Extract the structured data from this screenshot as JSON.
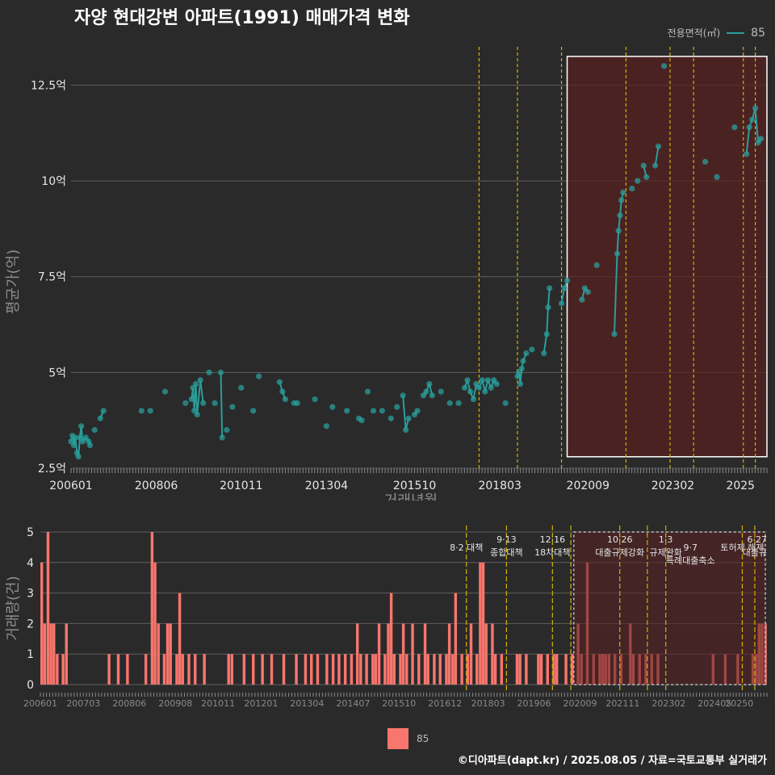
{
  "title": "자양 현대강변 아파트(1991) 매매가격 변화",
  "legend_top": {
    "label": "전용면적(㎡)",
    "value": "85"
  },
  "legend_bottom": {
    "value": "85"
  },
  "caption": "©디아파트(dapt.kr) / 2025.08.05 / 자료=국토교통부 실거래가",
  "colors": {
    "price": "#2a9d9a",
    "volume": "#f8766d",
    "policy_line": "#d4b106",
    "highlight": "#5a1f20"
  },
  "chart_data": [
    {
      "type": "scatter",
      "xlabel": "거래년월",
      "ylabel": "평균가(억)",
      "xlim": [
        2006.0,
        2025.75
      ],
      "ylim": [
        2.5,
        13.5
      ],
      "y_ticks": [
        2.5,
        5,
        7.5,
        10,
        12.5
      ],
      "y_tick_labels": [
        "2.5억",
        "5억",
        "7.5억",
        "10억",
        "12.5억"
      ],
      "x_ticks": [
        2006.0,
        2008.42,
        2010.83,
        2013.25,
        2015.75,
        2018.17,
        2020.67,
        2023.08,
        2025.0
      ],
      "x_tick_labels": [
        "200601",
        "200806",
        "201011",
        "201304",
        "201510",
        "201803",
        "202009",
        "202302",
        "2025"
      ],
      "policy_lines": [
        2017.58,
        2018.67,
        2019.92,
        2021.75,
        2023.0,
        2023.67,
        2025.08,
        2025.42
      ],
      "highlight_range": {
        "x": [
          2020.08,
          2025.75
        ],
        "y": [
          2.8,
          13.25
        ]
      },
      "series": [
        {
          "name": "85",
          "points": [
            [
              2006.0,
              3.2
            ],
            [
              2006.04,
              3.35
            ],
            [
              2006.08,
              3.1
            ],
            [
              2006.12,
              3.3
            ],
            [
              2006.17,
              2.9
            ],
            [
              2006.21,
              2.8
            ],
            [
              2006.25,
              3.3
            ],
            [
              2006.29,
              3.6
            ],
            [
              2006.33,
              3.2
            ],
            [
              2006.42,
              3.3
            ],
            [
              2006.5,
              3.2
            ],
            [
              2006.54,
              3.1
            ],
            [
              2006.67,
              3.5
            ],
            [
              2006.83,
              3.8
            ],
            [
              2006.92,
              4.0
            ],
            [
              2008.0,
              4.0
            ],
            [
              2008.25,
              4.0
            ],
            [
              2008.67,
              4.5
            ],
            [
              2009.25,
              4.2
            ],
            [
              2009.42,
              4.3
            ],
            [
              2009.46,
              4.6
            ],
            [
              2009.5,
              4.0
            ],
            [
              2009.54,
              4.7
            ],
            [
              2009.58,
              3.9
            ],
            [
              2009.67,
              4.8
            ],
            [
              2009.75,
              4.2
            ],
            [
              2009.92,
              5.0
            ],
            [
              2010.08,
              4.2
            ],
            [
              2010.25,
              5.0
            ],
            [
              2010.29,
              3.3
            ],
            [
              2010.42,
              3.5
            ],
            [
              2010.58,
              4.1
            ],
            [
              2010.83,
              4.6
            ],
            [
              2011.17,
              4.0
            ],
            [
              2011.33,
              4.9
            ],
            [
              2011.92,
              4.75
            ],
            [
              2012.0,
              4.5
            ],
            [
              2012.08,
              4.3
            ],
            [
              2012.33,
              4.2
            ],
            [
              2012.42,
              4.2
            ],
            [
              2012.92,
              4.3
            ],
            [
              2013.25,
              3.6
            ],
            [
              2013.42,
              4.1
            ],
            [
              2013.83,
              4.0
            ],
            [
              2014.17,
              3.8
            ],
            [
              2014.25,
              3.75
            ],
            [
              2014.42,
              4.5
            ],
            [
              2014.58,
              4.0
            ],
            [
              2014.83,
              4.0
            ],
            [
              2015.08,
              3.8
            ],
            [
              2015.25,
              4.1
            ],
            [
              2015.42,
              4.4
            ],
            [
              2015.5,
              3.5
            ],
            [
              2015.58,
              3.8
            ],
            [
              2015.75,
              3.9
            ],
            [
              2015.83,
              4.0
            ],
            [
              2016.0,
              4.4
            ],
            [
              2016.08,
              4.5
            ],
            [
              2016.17,
              4.7
            ],
            [
              2016.25,
              4.4
            ],
            [
              2016.5,
              4.5
            ],
            [
              2016.75,
              4.2
            ],
            [
              2017.0,
              4.2
            ],
            [
              2017.17,
              4.6
            ],
            [
              2017.25,
              4.8
            ],
            [
              2017.33,
              4.5
            ],
            [
              2017.42,
              4.3
            ],
            [
              2017.5,
              4.7
            ],
            [
              2017.58,
              4.6
            ],
            [
              2017.67,
              4.8
            ],
            [
              2017.75,
              4.5
            ],
            [
              2017.83,
              4.8
            ],
            [
              2017.92,
              4.6
            ],
            [
              2018.0,
              4.8
            ],
            [
              2018.08,
              4.7
            ],
            [
              2018.33,
              4.2
            ],
            [
              2018.67,
              4.9
            ],
            [
              2018.71,
              5.0
            ],
            [
              2018.75,
              4.7
            ],
            [
              2018.79,
              5.1
            ],
            [
              2018.83,
              5.3
            ],
            [
              2018.92,
              5.5
            ],
            [
              2019.08,
              5.6
            ],
            [
              2019.42,
              5.5
            ],
            [
              2019.5,
              6.0
            ],
            [
              2019.54,
              6.7
            ],
            [
              2019.58,
              7.2
            ],
            [
              2019.92,
              6.8
            ],
            [
              2020.0,
              7.2
            ],
            [
              2020.08,
              7.4
            ],
            [
              2020.5,
              6.9
            ],
            [
              2020.58,
              7.2
            ],
            [
              2020.67,
              7.1
            ],
            [
              2020.92,
              7.8
            ],
            [
              2021.42,
              6.0
            ],
            [
              2021.5,
              8.1
            ],
            [
              2021.54,
              8.7
            ],
            [
              2021.58,
              9.1
            ],
            [
              2021.62,
              9.5
            ],
            [
              2021.67,
              9.7
            ],
            [
              2021.92,
              9.8
            ],
            [
              2022.08,
              10.0
            ],
            [
              2022.25,
              10.4
            ],
            [
              2022.33,
              10.1
            ],
            [
              2022.58,
              10.4
            ],
            [
              2022.67,
              10.9
            ],
            [
              2022.83,
              13.0
            ],
            [
              2024.0,
              10.5
            ],
            [
              2024.33,
              10.1
            ],
            [
              2024.83,
              11.4
            ],
            [
              2025.17,
              10.7
            ],
            [
              2025.25,
              11.4
            ],
            [
              2025.33,
              11.6
            ],
            [
              2025.42,
              11.9
            ],
            [
              2025.5,
              11.0
            ],
            [
              2025.58,
              11.1
            ]
          ]
        }
      ]
    },
    {
      "type": "bar",
      "xlabel": "",
      "ylabel": "거래량(건)",
      "xlim": [
        2006.0,
        2025.75
      ],
      "ylim": [
        0,
        5
      ],
      "y_ticks": [
        0,
        1,
        2,
        3,
        4,
        5
      ],
      "x_ticks": [
        2006.0,
        2007.17,
        2008.42,
        2009.67,
        2010.83,
        2012.0,
        2013.25,
        2014.5,
        2015.75,
        2017.0,
        2018.17,
        2019.42,
        2020.67,
        2021.83,
        2023.08,
        2024.33,
        2025.0
      ],
      "x_tick_labels": [
        "200601",
        "200703",
        "200806",
        "200908",
        "201011",
        "201201",
        "201304",
        "201407",
        "201510",
        "201612",
        "201803",
        "201906",
        "202009",
        "202111",
        "202302",
        "202405",
        "20250"
      ],
      "policy_lines": [
        2017.58,
        2018.67,
        2019.92,
        2020.42,
        2021.75,
        2022.5,
        2023.0,
        2025.08,
        2025.42
      ],
      "highlight_range": {
        "x": [
          2020.5,
          2025.75
        ],
        "y": [
          0,
          5
        ]
      },
      "annotations": [
        {
          "x": 2017.58,
          "row": 1,
          "lines": [
            "8·2 대책"
          ]
        },
        {
          "x": 2018.67,
          "row": 0,
          "lines": [
            "9·13",
            "종합대책"
          ]
        },
        {
          "x": 2019.92,
          "row": 0,
          "lines": [
            "12·16",
            "18차대책"
          ]
        },
        {
          "x": 2021.75,
          "row": 0,
          "lines": [
            "10·26",
            "대출규제강화"
          ]
        },
        {
          "x": 2023.0,
          "row": 0,
          "lines": [
            "1·3",
            "규제완화"
          ]
        },
        {
          "x": 2023.67,
          "row": 1,
          "lines": [
            "9·7",
            "특례대출축소"
          ]
        },
        {
          "x": 2025.42,
          "row": 0,
          "lines": [
            "6·27",
            "대출규"
          ]
        },
        {
          "x": 2025.08,
          "row": 1,
          "lines": [
            "토허제 해제"
          ]
        }
      ],
      "series": [
        {
          "name": "85",
          "bars": [
            [
              2006.0,
              4
            ],
            [
              2006.08,
              2
            ],
            [
              2006.17,
              5
            ],
            [
              2006.25,
              2
            ],
            [
              2006.33,
              2
            ],
            [
              2006.42,
              1
            ],
            [
              2006.58,
              1
            ],
            [
              2006.67,
              2
            ],
            [
              2007.83,
              1
            ],
            [
              2008.08,
              1
            ],
            [
              2008.33,
              1
            ],
            [
              2008.83,
              1
            ],
            [
              2009.0,
              5
            ],
            [
              2009.08,
              4
            ],
            [
              2009.17,
              2
            ],
            [
              2009.33,
              1
            ],
            [
              2009.42,
              2
            ],
            [
              2009.5,
              2
            ],
            [
              2009.67,
              1
            ],
            [
              2009.75,
              3
            ],
            [
              2009.83,
              1
            ],
            [
              2010.0,
              1
            ],
            [
              2010.17,
              1
            ],
            [
              2010.42,
              1
            ],
            [
              2011.08,
              1
            ],
            [
              2011.17,
              1
            ],
            [
              2011.5,
              1
            ],
            [
              2011.75,
              1
            ],
            [
              2012.0,
              1
            ],
            [
              2012.25,
              1
            ],
            [
              2012.58,
              1
            ],
            [
              2012.92,
              1
            ],
            [
              2013.17,
              1
            ],
            [
              2013.33,
              1
            ],
            [
              2013.5,
              1
            ],
            [
              2013.75,
              1
            ],
            [
              2013.92,
              1
            ],
            [
              2014.08,
              1
            ],
            [
              2014.25,
              1
            ],
            [
              2014.42,
              1
            ],
            [
              2014.58,
              2
            ],
            [
              2014.67,
              1
            ],
            [
              2014.83,
              1
            ],
            [
              2015.0,
              1
            ],
            [
              2015.08,
              1
            ],
            [
              2015.17,
              2
            ],
            [
              2015.33,
              1
            ],
            [
              2015.42,
              2
            ],
            [
              2015.5,
              3
            ],
            [
              2015.58,
              1
            ],
            [
              2015.75,
              1
            ],
            [
              2015.83,
              2
            ],
            [
              2015.92,
              1
            ],
            [
              2016.08,
              2
            ],
            [
              2016.25,
              1
            ],
            [
              2016.42,
              2
            ],
            [
              2016.5,
              1
            ],
            [
              2016.67,
              1
            ],
            [
              2016.83,
              1
            ],
            [
              2017.0,
              1
            ],
            [
              2017.08,
              2
            ],
            [
              2017.17,
              1
            ],
            [
              2017.25,
              3
            ],
            [
              2017.42,
              1
            ],
            [
              2017.58,
              1
            ],
            [
              2017.67,
              2
            ],
            [
              2017.83,
              1
            ],
            [
              2017.92,
              4
            ],
            [
              2018.0,
              4
            ],
            [
              2018.08,
              2
            ],
            [
              2018.25,
              2
            ],
            [
              2018.33,
              1
            ],
            [
              2018.5,
              1
            ],
            [
              2018.92,
              1
            ],
            [
              2019.0,
              1
            ],
            [
              2019.17,
              1
            ],
            [
              2019.5,
              1
            ],
            [
              2019.58,
              1
            ],
            [
              2019.75,
              1
            ],
            [
              2019.92,
              1
            ],
            [
              2020.0,
              1
            ],
            [
              2020.25,
              1
            ],
            [
              2020.42,
              1
            ],
            [
              2020.58,
              2
            ],
            [
              2020.67,
              1
            ],
            [
              2020.83,
              4
            ],
            [
              2021.0,
              1
            ],
            [
              2021.17,
              1
            ],
            [
              2021.25,
              1
            ],
            [
              2021.33,
              1
            ],
            [
              2021.42,
              1
            ],
            [
              2021.58,
              1
            ],
            [
              2021.75,
              1
            ],
            [
              2022.0,
              2
            ],
            [
              2022.08,
              1
            ],
            [
              2022.25,
              1
            ],
            [
              2022.42,
              1
            ],
            [
              2022.58,
              1
            ],
            [
              2022.75,
              1
            ],
            [
              2024.25,
              1
            ],
            [
              2024.58,
              1
            ],
            [
              2024.92,
              1
            ],
            [
              2025.33,
              1
            ],
            [
              2025.42,
              1
            ],
            [
              2025.5,
              2
            ],
            [
              2025.58,
              2
            ],
            [
              2025.67,
              2
            ]
          ]
        }
      ]
    }
  ]
}
